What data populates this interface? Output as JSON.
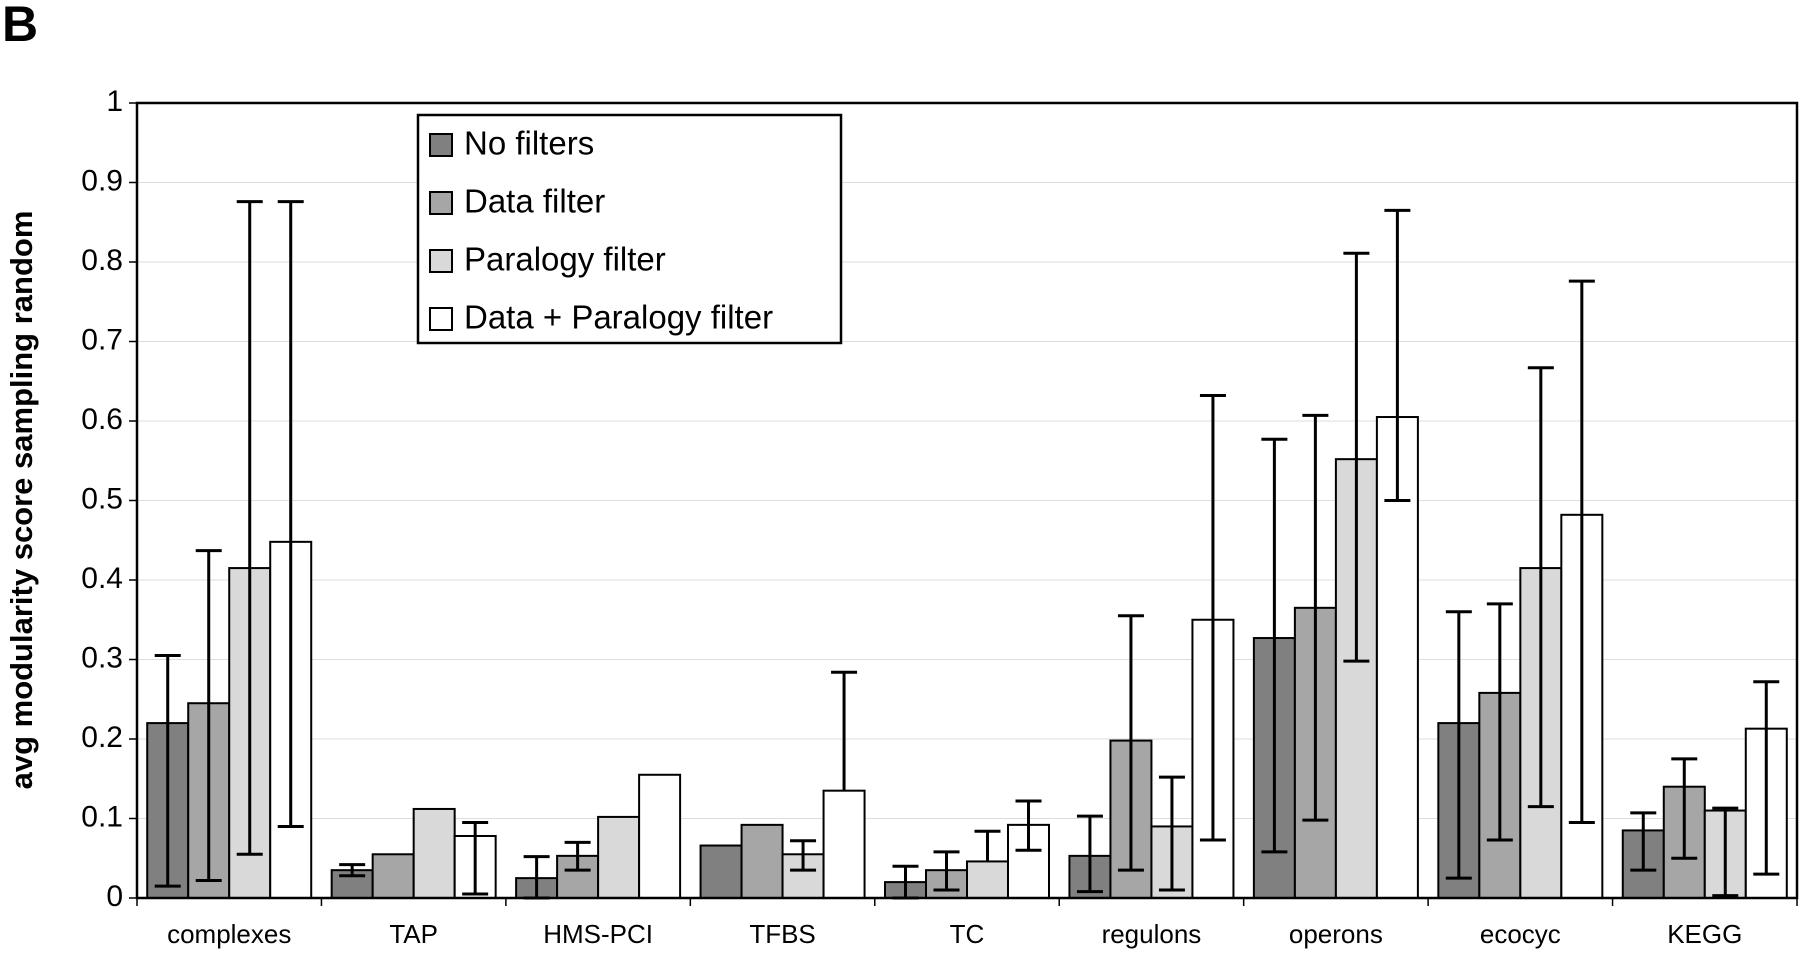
{
  "chart_data": {
    "type": "bar",
    "panel_label": "B",
    "y_label": "avg modularity score sampling random",
    "categories": [
      "complexes",
      "TAP",
      "HMS-PCI",
      "TFBS",
      "TC",
      "regulons",
      "operons",
      "ecocyc",
      "KEGG"
    ],
    "series": [
      {
        "name": "No filters",
        "color": "#808080",
        "values": [
          0.22,
          0.035,
          0.025,
          0.066,
          0.02,
          0.053,
          0.327,
          0.22,
          0.085
        ],
        "error_low": [
          0.015,
          0.028,
          0.0,
          null,
          0.0,
          0.008,
          0.058,
          0.025,
          0.035
        ],
        "error_high": [
          0.305,
          0.042,
          0.052,
          null,
          0.04,
          0.103,
          0.577,
          0.36,
          0.107
        ]
      },
      {
        "name": "Data filter",
        "color": "#a6a6a6",
        "values": [
          0.245,
          0.055,
          0.053,
          0.092,
          0.035,
          0.198,
          0.365,
          0.258,
          0.14
        ],
        "error_low": [
          0.022,
          null,
          0.035,
          null,
          0.01,
          0.035,
          0.098,
          0.073,
          0.05
        ],
        "error_high": [
          0.437,
          null,
          0.07,
          null,
          0.058,
          0.355,
          0.607,
          0.37,
          0.175
        ]
      },
      {
        "name": "Paralogy filter",
        "color": "#d9d9d9",
        "values": [
          0.415,
          0.112,
          0.102,
          0.055,
          0.046,
          0.09,
          0.552,
          0.415,
          0.11
        ],
        "error_low": [
          0.055,
          null,
          null,
          0.035,
          null,
          0.01,
          0.298,
          0.115,
          0.003
        ],
        "error_high": [
          0.876,
          null,
          null,
          0.072,
          0.084,
          0.152,
          0.811,
          0.667,
          0.113
        ]
      },
      {
        "name": "Data + Paralogy filter",
        "color": "#ffffff",
        "values": [
          0.448,
          0.078,
          0.155,
          0.135,
          0.092,
          0.35,
          0.605,
          0.482,
          0.213
        ],
        "error_low": [
          0.09,
          0.005,
          null,
          null,
          0.06,
          0.073,
          0.5,
          0.095,
          0.03
        ],
        "error_high": [
          0.876,
          0.095,
          null,
          0.284,
          0.122,
          0.632,
          0.865,
          0.776,
          0.272
        ]
      }
    ],
    "ylim": [
      0,
      1
    ],
    "yticks": [
      0,
      0.1,
      0.2,
      0.3,
      0.4,
      0.5,
      0.6,
      0.7,
      0.8,
      0.9,
      1
    ],
    "grid": true,
    "legend": "top-left"
  }
}
